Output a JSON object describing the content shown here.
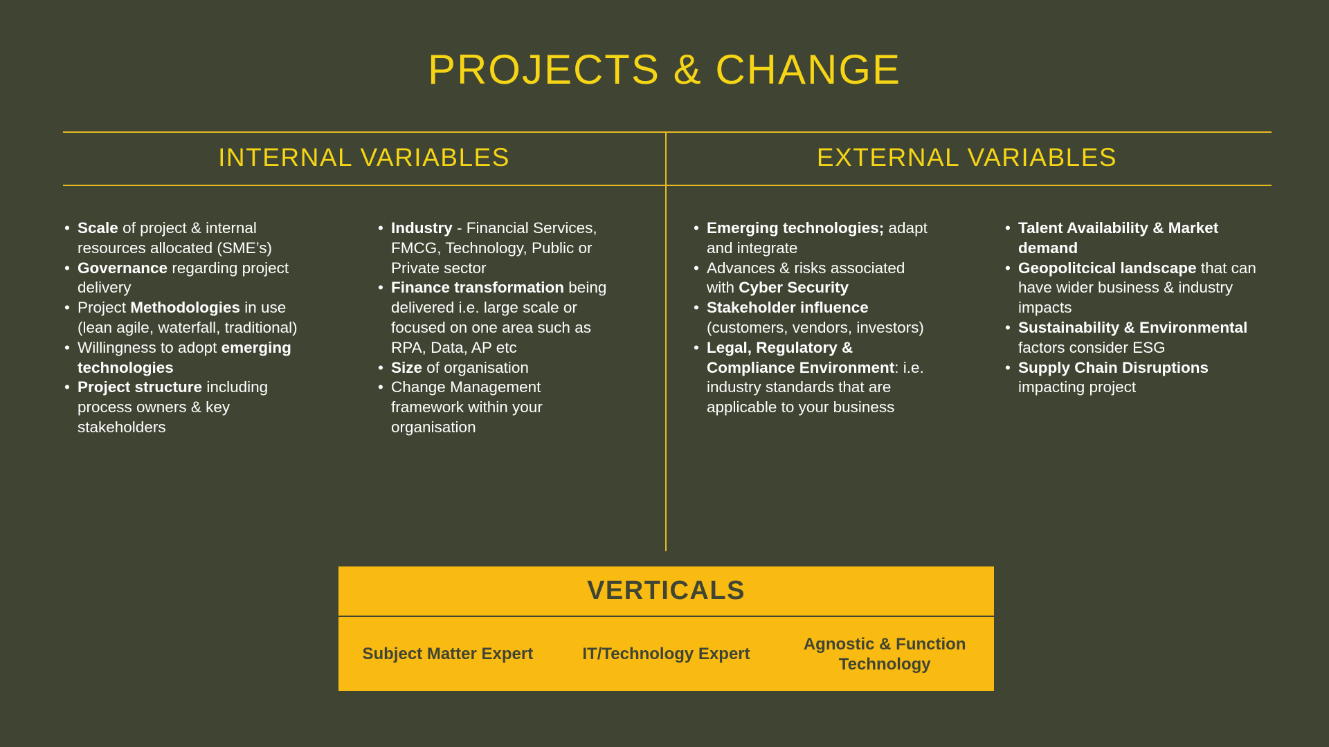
{
  "title": "PROJECTS & CHANGE",
  "internal": {
    "heading": "INTERNAL VARIABLES",
    "columns": [
      [
        [
          {
            "t": "Scale",
            "b": true
          },
          {
            "t": " of project & internal resources allocated (SME’s)",
            "b": false
          }
        ],
        [
          {
            "t": "Governance",
            "b": true
          },
          {
            "t": " regarding project delivery",
            "b": false
          }
        ],
        [
          {
            "t": "Project ",
            "b": false
          },
          {
            "t": "Methodologies",
            "b": true
          },
          {
            "t": " in use (lean agile, waterfall, traditional)",
            "b": false
          }
        ],
        [
          {
            "t": "Willingness to adopt ",
            "b": false
          },
          {
            "t": "emerging technologies",
            "b": true
          }
        ],
        [
          {
            "t": "Project structure",
            "b": true
          },
          {
            "t": " including process owners & key stakeholders",
            "b": false
          }
        ]
      ],
      [
        [
          {
            "t": "Industry",
            "b": true
          },
          {
            "t": " - Financial Services, FMCG, Technology, Public or Private sector",
            "b": false
          }
        ],
        [
          {
            "t": "Finance transformation",
            "b": true
          },
          {
            "t": " being delivered i.e. large scale or focused on one area such as RPA, Data, AP etc",
            "b": false
          }
        ],
        [
          {
            "t": "Size",
            "b": true
          },
          {
            "t": " of organisation",
            "b": false
          }
        ],
        [
          {
            "t": "Change Management framework within your organisation",
            "b": false
          }
        ]
      ]
    ]
  },
  "external": {
    "heading": "EXTERNAL VARIABLES",
    "columns": [
      [
        [
          {
            "t": "Emerging technologies;",
            "b": true
          },
          {
            "t": " adapt and integrate",
            "b": false
          }
        ],
        [
          {
            "t": "Advances & risks associated with ",
            "b": false
          },
          {
            "t": "Cyber Security",
            "b": true
          }
        ],
        [
          {
            "t": "Stakeholder influence",
            "b": true
          },
          {
            "t": " (customers, vendors, investors)",
            "b": false
          }
        ],
        [
          {
            "t": "Legal, Regulatory & Compliance Environment",
            "b": true
          },
          {
            "t": ": i.e. industry standards that are applicable to your business",
            "b": false
          }
        ]
      ],
      [
        [
          {
            "t": "Talent Availability & Market demand",
            "b": true
          }
        ],
        [
          {
            "t": "Geopolitcical landscape",
            "b": true
          },
          {
            "t": " that can have wider business & industry impacts",
            "b": false
          }
        ],
        [
          {
            "t": "Sustainability & Environmental",
            "b": true
          },
          {
            "t": " factors consider ESG",
            "b": false
          }
        ],
        [
          {
            "t": "Supply Chain Disruptions",
            "b": true
          },
          {
            "t": " impacting project",
            "b": false
          }
        ]
      ]
    ]
  },
  "verticals": {
    "heading": "VERTICALS",
    "items": [
      "Subject Matter Expert",
      "IT/Technology Expert",
      "Agnostic & Function Technology"
    ]
  },
  "colors": {
    "background": "#404533",
    "accent_text": "#f5d516",
    "box": "#f9bb12",
    "rule": "#e8b923"
  },
  "bullet": "•"
}
